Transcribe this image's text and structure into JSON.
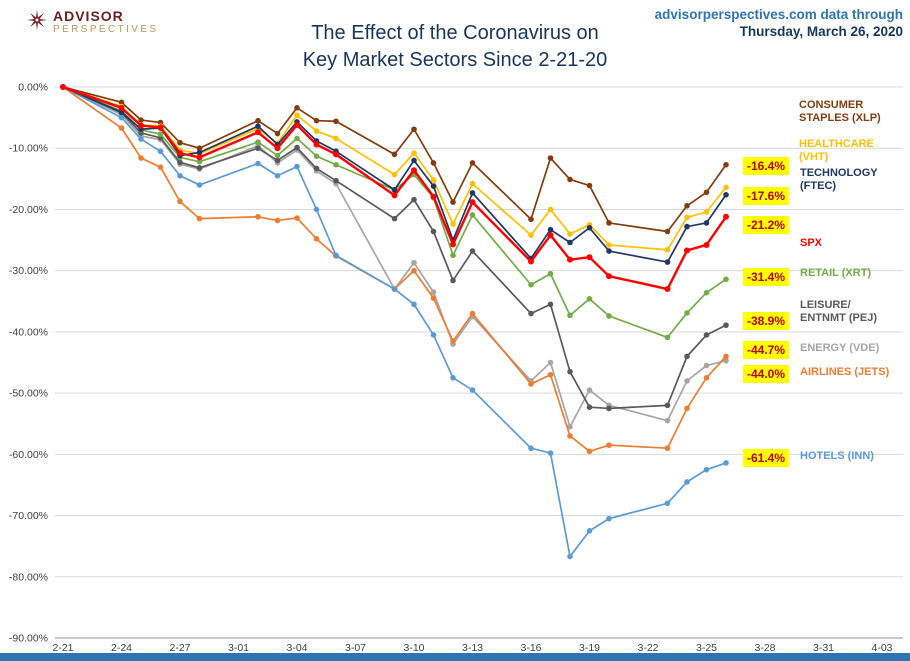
{
  "header": {
    "logo_line1": "ADVISOR",
    "logo_line2": "PERSPECTIVES",
    "title_line1": "The Effect of the Coronavirus on",
    "title_line2": "Key Market Sectors Since 2-21-20",
    "source_line1": "advisorperspectives.com data through",
    "source_line2": "Thursday, March 26, 2020"
  },
  "colors": {
    "highlight_bg": "#FFFF00",
    "highlight_text": "#C00000",
    "grid": "#D9D9D9",
    "axis_line": "#A6A6A6",
    "axis_text": "#404040",
    "title": "#17365D",
    "source_blue": "#2E74B5",
    "source_dark": "#17365D",
    "footer_bar": "#2E74B5",
    "logo_red": "#7A1F1F",
    "logo_gold": "#B5985A"
  },
  "chart_data": {
    "type": "line",
    "title": "The Effect of the Coronavirus on Key Market Sectors Since 2-21-20",
    "xlabel": "",
    "ylabel": "",
    "grid": true,
    "legend_position": "right",
    "y_axis": {
      "tick_labels": [
        "0.00%",
        "-10.00%",
        "-20.00%",
        "-30.00%",
        "-40.00%",
        "-50.00%",
        "-60.00%",
        "-70.00%",
        "-80.00%",
        "-90.00%"
      ],
      "tick_values": [
        0,
        -10,
        -20,
        -30,
        -40,
        -50,
        -60,
        -70,
        -80,
        -90
      ],
      "range": [
        -90,
        0
      ]
    },
    "x_axis": {
      "tick_labels": [
        "2-21",
        "2-24",
        "2-27",
        "3-01",
        "3-04",
        "3-07",
        "3-10",
        "3-13",
        "3-16",
        "3-19",
        "3-22",
        "3-25",
        "3-28",
        "3-31",
        "4-03"
      ],
      "tick_days": [
        0,
        3,
        6,
        9,
        12,
        15,
        18,
        21,
        24,
        27,
        30,
        33,
        36,
        39,
        42
      ]
    },
    "dates": [
      "2-21",
      "2-24",
      "2-25",
      "2-26",
      "2-27",
      "2-28",
      "3-02",
      "3-03",
      "3-04",
      "3-05",
      "3-06",
      "3-09",
      "3-10",
      "3-11",
      "3-12",
      "3-13",
      "3-16",
      "3-17",
      "3-18",
      "3-19",
      "3-20",
      "3-23",
      "3-24",
      "3-25",
      "3-26"
    ],
    "date_days": [
      0,
      3,
      4,
      5,
      6,
      7,
      10,
      11,
      12,
      13,
      14,
      17,
      18,
      19,
      20,
      21,
      24,
      25,
      26,
      27,
      28,
      31,
      32,
      33,
      34
    ],
    "series": [
      {
        "id": "XLP",
        "name": "CONSUMER STAPLES (XLP)",
        "legend_lines": [
          "CONSUMER",
          "STAPLES (XLP)"
        ],
        "color": "#843C0C",
        "final_label": null,
        "values": [
          0,
          -2.5,
          -5.4,
          -5.8,
          -9.1,
          -10.0,
          -5.5,
          -7.6,
          -3.4,
          -5.5,
          -5.6,
          -11.0,
          -6.9,
          -12.4,
          -18.8,
          -12.4,
          -21.6,
          -11.6,
          -15.1,
          -16.1,
          -22.2,
          -23.6,
          -19.4,
          -17.2,
          -12.7
        ]
      },
      {
        "id": "VHT",
        "name": "HEALTHCARE (VHT)",
        "legend_lines": [
          "HEALTHCARE",
          "(VHT)"
        ],
        "color": "#FFC000",
        "final_label": "-16.4%",
        "values": [
          0,
          -3.2,
          -6.2,
          -6.4,
          -10.3,
          -10.9,
          -6.8,
          -9.2,
          -4.6,
          -7.2,
          -8.4,
          -14.3,
          -10.8,
          -15.2,
          -22.4,
          -15.8,
          -24.2,
          -20.0,
          -24.0,
          -22.5,
          -25.8,
          -26.6,
          -21.3,
          -20.4,
          -16.4
        ]
      },
      {
        "id": "FTEC",
        "name": "TECHNOLOGY (FTEC)",
        "legend_lines": [
          "TECHNOLOGY",
          "(FTEC)"
        ],
        "color": "#1F3864",
        "final_label": "-17.6%",
        "values": [
          0,
          -4.1,
          -6.9,
          -6.7,
          -11.2,
          -10.7,
          -6.4,
          -9.4,
          -5.7,
          -8.8,
          -10.5,
          -16.8,
          -12.0,
          -16.2,
          -25.0,
          -17.3,
          -28.0,
          -23.3,
          -25.4,
          -23.0,
          -26.8,
          -28.6,
          -22.8,
          -22.2,
          -17.6
        ]
      },
      {
        "id": "SPX",
        "name": "SPX",
        "legend_lines": [
          "SPX"
        ],
        "color": "#FF0000",
        "final_label": "-21.2%",
        "values": [
          0,
          -3.4,
          -6.3,
          -6.6,
          -10.8,
          -11.5,
          -7.4,
          -10.0,
          -6.2,
          -9.4,
          -11.0,
          -17.7,
          -13.6,
          -17.9,
          -25.7,
          -18.8,
          -28.5,
          -24.2,
          -28.2,
          -27.8,
          -30.9,
          -33.0,
          -26.7,
          -25.8,
          -21.2
        ]
      },
      {
        "id": "XRT",
        "name": "RETAIL (XRT)",
        "legend_lines": [
          "RETAIL (XRT)"
        ],
        "color": "#70AD47",
        "final_label": "-31.4%",
        "values": [
          0,
          -3.9,
          -7.0,
          -7.7,
          -11.5,
          -12.2,
          -9.0,
          -11.2,
          -8.4,
          -11.3,
          -12.7,
          -16.8,
          -14.3,
          -18.1,
          -27.5,
          -20.9,
          -32.3,
          -30.5,
          -37.3,
          -34.6,
          -37.4,
          -40.9,
          -36.9,
          -33.6,
          -31.4
        ]
      },
      {
        "id": "PEJ",
        "name": "LEISURE/ENTNMT (PEJ)",
        "legend_lines": [
          "LEISURE/",
          "ENTNMT (PEJ)"
        ],
        "color": "#595959",
        "final_label": "-38.9%",
        "values": [
          0,
          -4.2,
          -7.5,
          -8.3,
          -12.3,
          -13.2,
          -10.0,
          -12.0,
          -9.9,
          -13.3,
          -15.3,
          -21.5,
          -18.4,
          -23.6,
          -31.6,
          -26.8,
          -37.0,
          -35.5,
          -46.5,
          -52.3,
          -52.5,
          -52.0,
          -44.0,
          -40.5,
          -38.9
        ]
      },
      {
        "id": "VDE",
        "name": "ENERGY (VDE)",
        "legend_lines": [
          "ENERGY (VDE)"
        ],
        "color": "#A6A6A6",
        "final_label": "-44.7%",
        "values": [
          0,
          -4.5,
          -8.0,
          -8.6,
          -12.6,
          -13.4,
          -9.6,
          -12.4,
          -10.3,
          -13.7,
          -15.8,
          -33.0,
          -28.7,
          -33.5,
          -42.0,
          -37.5,
          -48.0,
          -45.0,
          -55.5,
          -49.5,
          -52.0,
          -54.5,
          -48.0,
          -45.5,
          -44.7
        ]
      },
      {
        "id": "JETS",
        "name": "AIRLINES (JETS)",
        "legend_lines": [
          "AIRLINES (JETS)"
        ],
        "color": "#ED7D31",
        "final_label": "-44.0%",
        "values": [
          0,
          -6.7,
          -11.6,
          -13.1,
          -18.7,
          -21.5,
          -21.2,
          -21.8,
          -21.4,
          -24.8,
          -27.6,
          -33.0,
          -30.0,
          -34.5,
          -41.5,
          -37.0,
          -48.5,
          -47.0,
          -57.0,
          -59.5,
          -58.5,
          -59.0,
          -52.5,
          -47.5,
          -44.0
        ]
      },
      {
        "id": "INN",
        "name": "HOTELS (INN)",
        "legend_lines": [
          "HOTELS (INN)"
        ],
        "color": "#5B9BD5",
        "final_label": "-61.4%",
        "values": [
          0,
          -5.0,
          -8.5,
          -10.5,
          -14.5,
          -16.0,
          -12.5,
          -14.5,
          -13.0,
          -20.0,
          -27.5,
          -33.0,
          -35.5,
          -40.5,
          -47.5,
          -49.5,
          -59.0,
          -59.8,
          -76.7,
          -72.5,
          -70.5,
          -68.0,
          -64.5,
          -62.5,
          -61.4
        ]
      }
    ]
  }
}
